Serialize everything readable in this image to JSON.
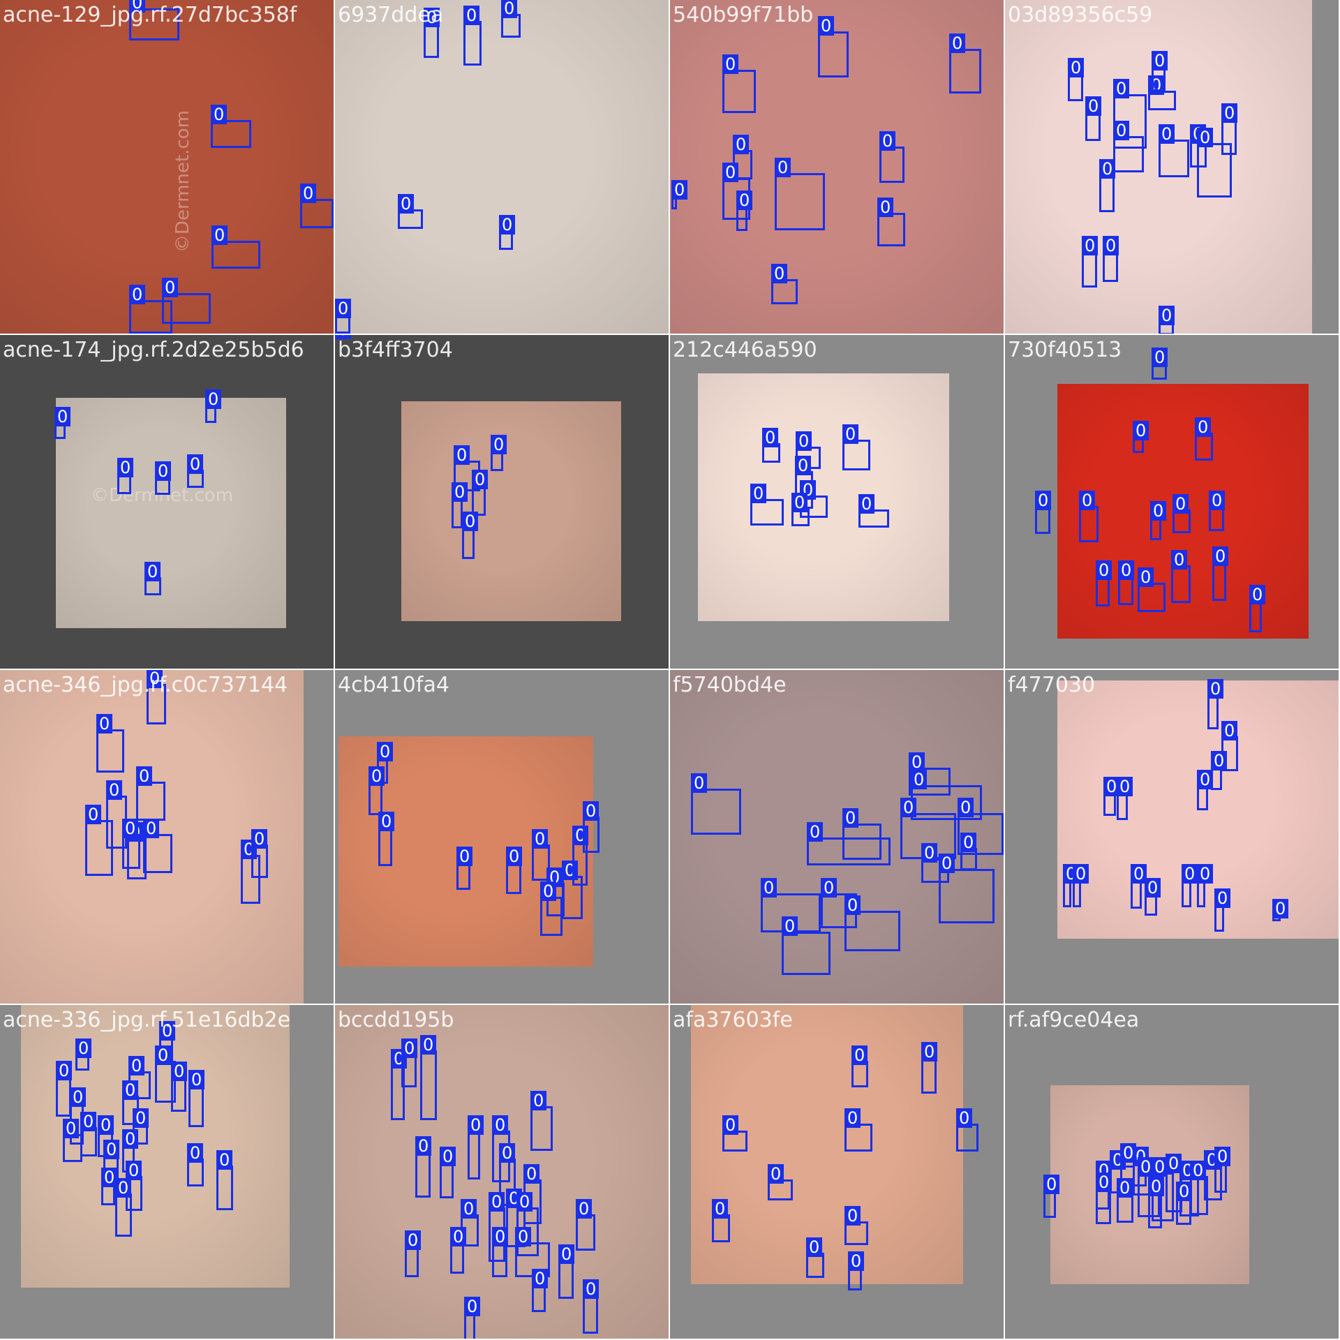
{
  "colors": {
    "box": "#1a2fe6",
    "tag_text": "#ffffff",
    "pad_gray": "#8a8a8a",
    "pad_dark": "#4a4a4a"
  },
  "tiles": [
    {
      "filename": "acne-129_jpg.rf.27d7bc358f",
      "skin": "#b3523a",
      "pad": "#4a4a4a",
      "watermark": "©Dermnet.com",
      "boxes": [
        {
          "label": "0"
        },
        {
          "label": "0"
        },
        {
          "label": "0"
        },
        {
          "label": "0"
        },
        {
          "label": "0"
        },
        {
          "label": "0"
        }
      ]
    },
    {
      "filename": "6937ddea",
      "skin": "#d8cec6",
      "pad": "#4a4a4a",
      "boxes": [
        {
          "label": "0"
        },
        {
          "label": "0"
        },
        {
          "label": "0"
        },
        {
          "label": "0"
        },
        {
          "label": "0"
        },
        {
          "label": "0"
        },
        {
          "label": "0"
        }
      ]
    },
    {
      "filename": "540b99f71bb",
      "skin": "#c98782",
      "pad": "#4a4a4a",
      "boxes": [
        {
          "label": "0"
        },
        {
          "label": "0"
        },
        {
          "label": "0"
        },
        {
          "label": "0"
        },
        {
          "label": "0"
        },
        {
          "label": "0"
        },
        {
          "label": "0"
        },
        {
          "label": "0"
        },
        {
          "label": "0"
        },
        {
          "label": "0"
        },
        {
          "label": "0"
        }
      ]
    },
    {
      "filename": "03d89356c59",
      "skin": "#efd6d2",
      "pad": "#8a8a8a",
      "boxes": [
        {
          "label": "0"
        },
        {
          "label": "0"
        },
        {
          "label": "0"
        },
        {
          "label": "0"
        },
        {
          "label": "0"
        },
        {
          "label": "0"
        },
        {
          "label": "0"
        },
        {
          "label": "0"
        },
        {
          "label": "0"
        },
        {
          "label": "0"
        },
        {
          "label": "0"
        },
        {
          "label": "0"
        },
        {
          "label": "0"
        },
        {
          "label": "0"
        }
      ]
    },
    {
      "filename": "acne-174_jpg.rf.2d2e25b5d6",
      "skin": "#c9bfb4",
      "pad": "#4a4a4a",
      "watermark": "©Dermnet.com",
      "boxes": [
        {
          "label": "0"
        },
        {
          "label": "0"
        },
        {
          "label": "0"
        },
        {
          "label": "0"
        },
        {
          "label": "0"
        },
        {
          "label": "0"
        }
      ]
    },
    {
      "filename": "b3f4ff3704",
      "skin": "#caa08e",
      "pad": "#4a4a4a",
      "boxes": [
        {
          "label": "0"
        },
        {
          "label": "0"
        },
        {
          "label": "0"
        },
        {
          "label": "0"
        },
        {
          "label": "0"
        },
        {
          "label": "0"
        }
      ]
    },
    {
      "filename": "212c446a590",
      "skin": "#f2ddd3",
      "pad": "#8a8a8a",
      "boxes": [
        {
          "label": "0"
        },
        {
          "label": "0"
        },
        {
          "label": "0"
        },
        {
          "label": "0"
        },
        {
          "label": "0"
        },
        {
          "label": "0"
        },
        {
          "label": "0"
        },
        {
          "label": "0"
        }
      ]
    },
    {
      "filename": "730f40513",
      "skin": "#d62a1c",
      "pad": "#8a8a8a",
      "boxes": [
        {
          "label": "0"
        },
        {
          "label": "0"
        },
        {
          "label": "0"
        },
        {
          "label": "0"
        },
        {
          "label": "0"
        },
        {
          "label": "0"
        },
        {
          "label": "0"
        },
        {
          "label": "0"
        },
        {
          "label": "0"
        },
        {
          "label": "0"
        },
        {
          "label": "0"
        },
        {
          "label": "0"
        },
        {
          "label": "0"
        },
        {
          "label": "0"
        }
      ]
    },
    {
      "filename": "acne-346_jpg.rf.c0c737144",
      "skin": "#e2b8a6",
      "pad": "#8a8a8a",
      "boxes": [
        {
          "label": "0"
        },
        {
          "label": "0"
        },
        {
          "label": "0"
        },
        {
          "label": "0"
        },
        {
          "label": "0"
        },
        {
          "label": "0"
        },
        {
          "label": "0"
        },
        {
          "label": "0"
        },
        {
          "label": "0"
        },
        {
          "label": "0"
        }
      ]
    },
    {
      "filename": "4cb410fa4",
      "skin": "#d98563",
      "pad": "#8a8a8a",
      "boxes": [
        {
          "label": "0"
        },
        {
          "label": "0"
        },
        {
          "label": "0"
        },
        {
          "label": "0"
        },
        {
          "label": "0"
        },
        {
          "label": "0"
        },
        {
          "label": "0"
        },
        {
          "label": "0"
        },
        {
          "label": "0"
        },
        {
          "label": "0"
        },
        {
          "label": "0"
        },
        {
          "label": "0"
        }
      ]
    },
    {
      "filename": "f5740bd4e",
      "skin": "#a89090",
      "pad": "#8a8a8a",
      "boxes": [
        {
          "label": "0"
        },
        {
          "label": "0"
        },
        {
          "label": "0"
        },
        {
          "label": "0"
        },
        {
          "label": "0"
        },
        {
          "label": "0"
        },
        {
          "label": "0"
        },
        {
          "label": "0"
        },
        {
          "label": "0"
        },
        {
          "label": "0"
        },
        {
          "label": "0"
        },
        {
          "label": "0"
        },
        {
          "label": "0"
        },
        {
          "label": "0"
        }
      ]
    },
    {
      "filename": "f477030",
      "skin": "#f2c9c2",
      "pad": "#8a8a8a",
      "boxes": [
        {
          "label": "0"
        },
        {
          "label": "0"
        },
        {
          "label": "0"
        },
        {
          "label": "0"
        },
        {
          "label": "0"
        },
        {
          "label": "0"
        },
        {
          "label": "0"
        },
        {
          "label": "0"
        },
        {
          "label": "0"
        },
        {
          "label": "0"
        },
        {
          "label": "0"
        },
        {
          "label": "0"
        },
        {
          "label": "0"
        },
        {
          "label": "0"
        }
      ]
    },
    {
      "filename": "acne-336_jpg.rf.51e16db2e",
      "skin": "#d8bca8",
      "pad": "#8a8a8a",
      "boxes": [
        {
          "label": "0"
        },
        {
          "label": "0"
        },
        {
          "label": "0"
        },
        {
          "label": "0"
        },
        {
          "label": "0"
        },
        {
          "label": "0"
        },
        {
          "label": "0"
        },
        {
          "label": "0"
        },
        {
          "label": "0"
        },
        {
          "label": "0"
        },
        {
          "label": "0"
        },
        {
          "label": "0"
        },
        {
          "label": "0"
        },
        {
          "label": "0"
        },
        {
          "label": "0"
        },
        {
          "label": "0"
        },
        {
          "label": "0"
        },
        {
          "label": "0"
        },
        {
          "label": "0"
        },
        {
          "label": "0"
        }
      ]
    },
    {
      "filename": "bccdd195b",
      "skin": "#c8a89a",
      "pad": "#8a8a8a",
      "boxes": [
        {
          "label": "0"
        },
        {
          "label": "0"
        },
        {
          "label": "0"
        },
        {
          "label": "0"
        },
        {
          "label": "0"
        },
        {
          "label": "0"
        },
        {
          "label": "0"
        },
        {
          "label": "0"
        },
        {
          "label": "0"
        },
        {
          "label": "0"
        },
        {
          "label": "0"
        },
        {
          "label": "0"
        },
        {
          "label": "0"
        },
        {
          "label": "0"
        },
        {
          "label": "0"
        },
        {
          "label": "0"
        },
        {
          "label": "0"
        },
        {
          "label": "0"
        },
        {
          "label": "0"
        },
        {
          "label": "0"
        },
        {
          "label": "0"
        },
        {
          "label": "0"
        },
        {
          "label": "0"
        }
      ]
    },
    {
      "filename": "afa37603fe",
      "skin": "#e0a88e",
      "pad": "#8a8a8a",
      "boxes": [
        {
          "label": "0"
        },
        {
          "label": "0"
        },
        {
          "label": "0"
        },
        {
          "label": "0"
        },
        {
          "label": "0"
        },
        {
          "label": "0"
        },
        {
          "label": "0"
        },
        {
          "label": "0"
        },
        {
          "label": "0"
        },
        {
          "label": "0"
        }
      ]
    },
    {
      "filename": "rf.af9ce04ea",
      "skin": "#d6b0a4",
      "pad": "#8a8a8a",
      "boxes": [
        {
          "label": "0"
        },
        {
          "label": "0"
        },
        {
          "label": "0"
        },
        {
          "label": "0"
        },
        {
          "label": "0"
        },
        {
          "label": "0"
        },
        {
          "label": "0"
        },
        {
          "label": "0"
        },
        {
          "label": "0"
        },
        {
          "label": "0"
        },
        {
          "label": "0"
        },
        {
          "label": "0"
        },
        {
          "label": "0"
        },
        {
          "label": "0"
        },
        {
          "label": "0"
        },
        {
          "label": "0"
        }
      ]
    }
  ]
}
